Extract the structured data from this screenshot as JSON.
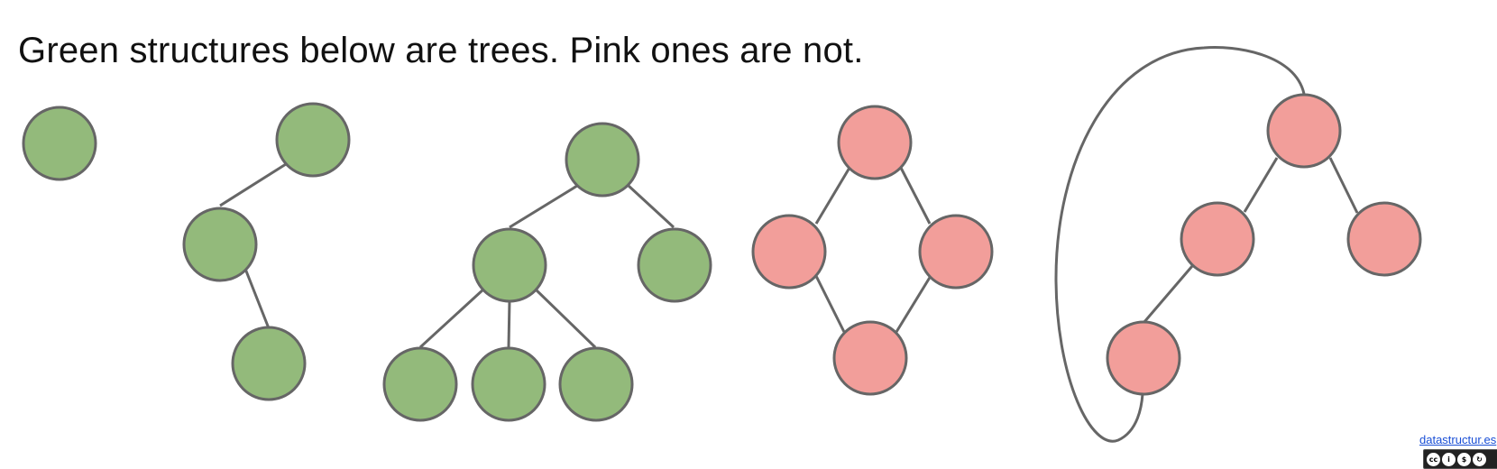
{
  "heading": "Green structures below are trees. Pink ones are not.",
  "colors": {
    "tree_fill": "#93BA7B",
    "non_tree_fill": "#F29E9A",
    "stroke": "#666666"
  },
  "footer": {
    "link_text": "datastructur.es",
    "license_icons": [
      "cc-icon",
      "by-icon",
      "nc-icon",
      "sa-icon"
    ],
    "license_glyphs": [
      "cc",
      "i",
      "$",
      "↻"
    ]
  },
  "structures": [
    {
      "name": "single-node-tree",
      "is_tree": true,
      "node_count": 1,
      "edge_count": 0
    },
    {
      "name": "chain-tree",
      "is_tree": true,
      "node_count": 3,
      "edge_count": 2
    },
    {
      "name": "branching-tree",
      "is_tree": true,
      "node_count": 6,
      "edge_count": 5
    },
    {
      "name": "diamond-cycle",
      "is_tree": false,
      "node_count": 4,
      "edge_count": 4
    },
    {
      "name": "looped-structure",
      "is_tree": false,
      "node_count": 4,
      "edge_count": 4
    }
  ]
}
